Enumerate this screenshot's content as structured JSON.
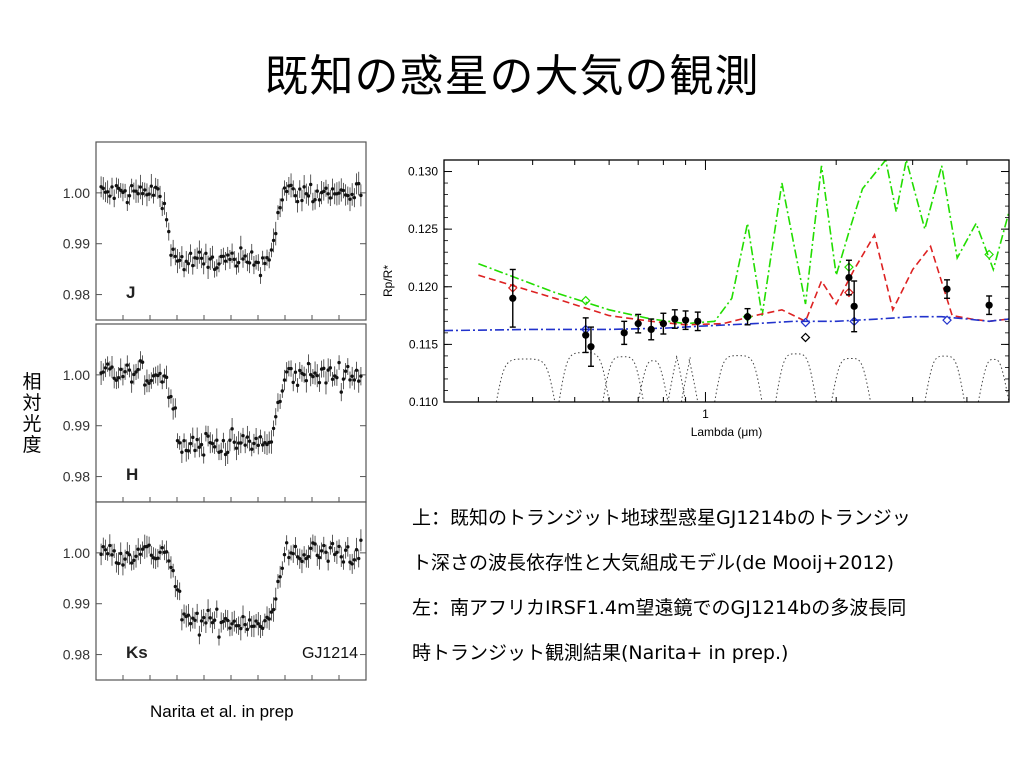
{
  "slide": {
    "title": "既知の惑星の大気の観測",
    "lightcurve_ylabel": [
      "相",
      "対",
      "光",
      "度"
    ],
    "credit": "Narita et al. in prep",
    "caption_lines": [
      "上：既知のトランジット地球型惑星GJ1214bのトランジッ",
      "ト深さの波長依存性と大気組成モデル(de Mooij+2012)",
      "左：南アフリカIRSF1.4m望遠鏡でのGJ1214bの多波長同",
      "時トランジット観測結果(Narita+ in prep.)"
    ]
  },
  "chart_data": [
    {
      "type": "scatter",
      "panels": [
        {
          "band": "J",
          "ylim": [
            0.975,
            1.01
          ],
          "yticks": [
            "1.00",
            "0.99",
            "0.98"
          ],
          "yvals": [
            1.0,
            0.99,
            0.98
          ],
          "baseline": 1.0,
          "depth": 0.0135,
          "noise": 0.003,
          "ingress": 0.26,
          "egress": 0.67
        },
        {
          "band": "H",
          "ylim": [
            0.975,
            1.01
          ],
          "yticks": [
            "1.00",
            "0.99",
            "0.98"
          ],
          "yvals": [
            1.0,
            0.99,
            0.98
          ],
          "baseline": 1.0,
          "depth": 0.0135,
          "noise": 0.003,
          "ingress": 0.28,
          "egress": 0.68
        },
        {
          "band": "Ks",
          "ylim": [
            0.975,
            1.01
          ],
          "yticks": [
            "1.00",
            "0.99",
            "0.98"
          ],
          "yvals": [
            1.0,
            0.99,
            0.98
          ],
          "baseline": 1.0,
          "depth": 0.0135,
          "noise": 0.003,
          "ingress": 0.29,
          "egress": 0.68,
          "label": "GJ1214"
        }
      ]
    },
    {
      "type": "line",
      "xlabel": "Lambda (μm)",
      "ylabel": "Rp/R*",
      "xscale": "log",
      "xlim": [
        0.25,
        5.0
      ],
      "ylim": [
        0.11,
        0.131
      ],
      "yticks": [
        0.11,
        0.115,
        0.12,
        0.125,
        0.13
      ],
      "ytick_labels": [
        "0.110",
        "0.115",
        "0.120",
        "0.125",
        "0.130"
      ],
      "xtick_labels": [
        {
          "x": 1.0,
          "label": "1"
        }
      ],
      "series": [
        {
          "style": "dash-dot",
          "color": "#22dd00",
          "x": [
            0.3,
            0.45,
            0.6,
            0.75,
            0.9,
            1.05,
            1.15,
            1.25,
            1.35,
            1.5,
            1.7,
            1.85,
            2.0,
            2.15,
            2.3,
            2.6,
            2.75,
            2.9,
            3.2,
            3.5,
            3.8,
            4.2,
            4.6,
            5.0
          ],
          "y": [
            0.122,
            0.1195,
            0.118,
            0.1172,
            0.1168,
            0.117,
            0.119,
            0.1255,
            0.1175,
            0.129,
            0.1185,
            0.1305,
            0.121,
            0.125,
            0.1285,
            0.131,
            0.1265,
            0.131,
            0.125,
            0.1305,
            0.1225,
            0.1255,
            0.1215,
            0.1265
          ]
        },
        {
          "style": "dashed",
          "color": "#dd2222",
          "x": [
            0.3,
            0.45,
            0.6,
            0.75,
            0.9,
            1.1,
            1.3,
            1.5,
            1.7,
            1.85,
            2.0,
            2.2,
            2.45,
            2.7,
            3.0,
            3.3,
            3.7,
            4.1,
            4.5,
            5.0
          ],
          "y": [
            0.121,
            0.119,
            0.1175,
            0.117,
            0.1167,
            0.1168,
            0.1175,
            0.118,
            0.117,
            0.1205,
            0.1185,
            0.1215,
            0.1245,
            0.118,
            0.1215,
            0.1235,
            0.1175,
            0.1172,
            0.117,
            0.1172
          ]
        },
        {
          "style": "dash-dot",
          "color": "#2233cc",
          "x": [
            0.25,
            0.4,
            0.6,
            0.8,
            1.0,
            1.3,
            1.6,
            2.0,
            2.5,
            3.0,
            3.5,
            4.0,
            4.5,
            5.0
          ],
          "y": [
            0.1162,
            0.1163,
            0.1163,
            0.1164,
            0.1166,
            0.1168,
            0.117,
            0.117,
            0.1172,
            0.1174,
            0.1174,
            0.1172,
            0.117,
            0.1172
          ]
        }
      ],
      "data_points": [
        {
          "x": 0.36,
          "y": 0.119,
          "err": 0.0025
        },
        {
          "x": 0.53,
          "y": 0.1158,
          "err": 0.0015
        },
        {
          "x": 0.545,
          "y": 0.1148,
          "err": 0.0017
        },
        {
          "x": 0.65,
          "y": 0.116,
          "err": 0.001
        },
        {
          "x": 0.7,
          "y": 0.1168,
          "err": 0.0008
        },
        {
          "x": 0.75,
          "y": 0.1163,
          "err": 0.0009
        },
        {
          "x": 0.8,
          "y": 0.1168,
          "err": 0.0009
        },
        {
          "x": 0.85,
          "y": 0.1172,
          "err": 0.0008
        },
        {
          "x": 0.9,
          "y": 0.1171,
          "err": 0.0008
        },
        {
          "x": 0.96,
          "y": 0.117,
          "err": 0.0008
        },
        {
          "x": 1.25,
          "y": 0.1174,
          "err": 0.0007
        },
        {
          "x": 2.14,
          "y": 0.1208,
          "err": 0.0015
        },
        {
          "x": 2.2,
          "y": 0.1183,
          "err": 0.0022
        },
        {
          "x": 3.6,
          "y": 0.1198,
          "err": 0.0008
        },
        {
          "x": 4.5,
          "y": 0.1184,
          "err": 0.0008
        }
      ],
      "model_markers": [
        {
          "x": 0.36,
          "y": 0.1199,
          "color": "#dd2222"
        },
        {
          "x": 0.53,
          "y": 0.1188,
          "color": "#22dd00"
        },
        {
          "x": 0.53,
          "y": 0.1163,
          "color": "#2233cc"
        },
        {
          "x": 1.25,
          "y": 0.1174,
          "color": "#22dd00"
        },
        {
          "x": 1.7,
          "y": 0.1169,
          "color": "#2233cc"
        },
        {
          "x": 2.14,
          "y": 0.1217,
          "color": "#22dd00"
        },
        {
          "x": 2.14,
          "y": 0.1195,
          "color": "#dd2222"
        },
        {
          "x": 2.2,
          "y": 0.117,
          "color": "#2233cc"
        },
        {
          "x": 1.7,
          "y": 0.1156,
          "color": "#000000"
        },
        {
          "x": 3.6,
          "y": 0.1171,
          "color": "#2233cc"
        },
        {
          "x": 4.5,
          "y": 0.1228,
          "color": "#22dd00"
        }
      ]
    }
  ]
}
